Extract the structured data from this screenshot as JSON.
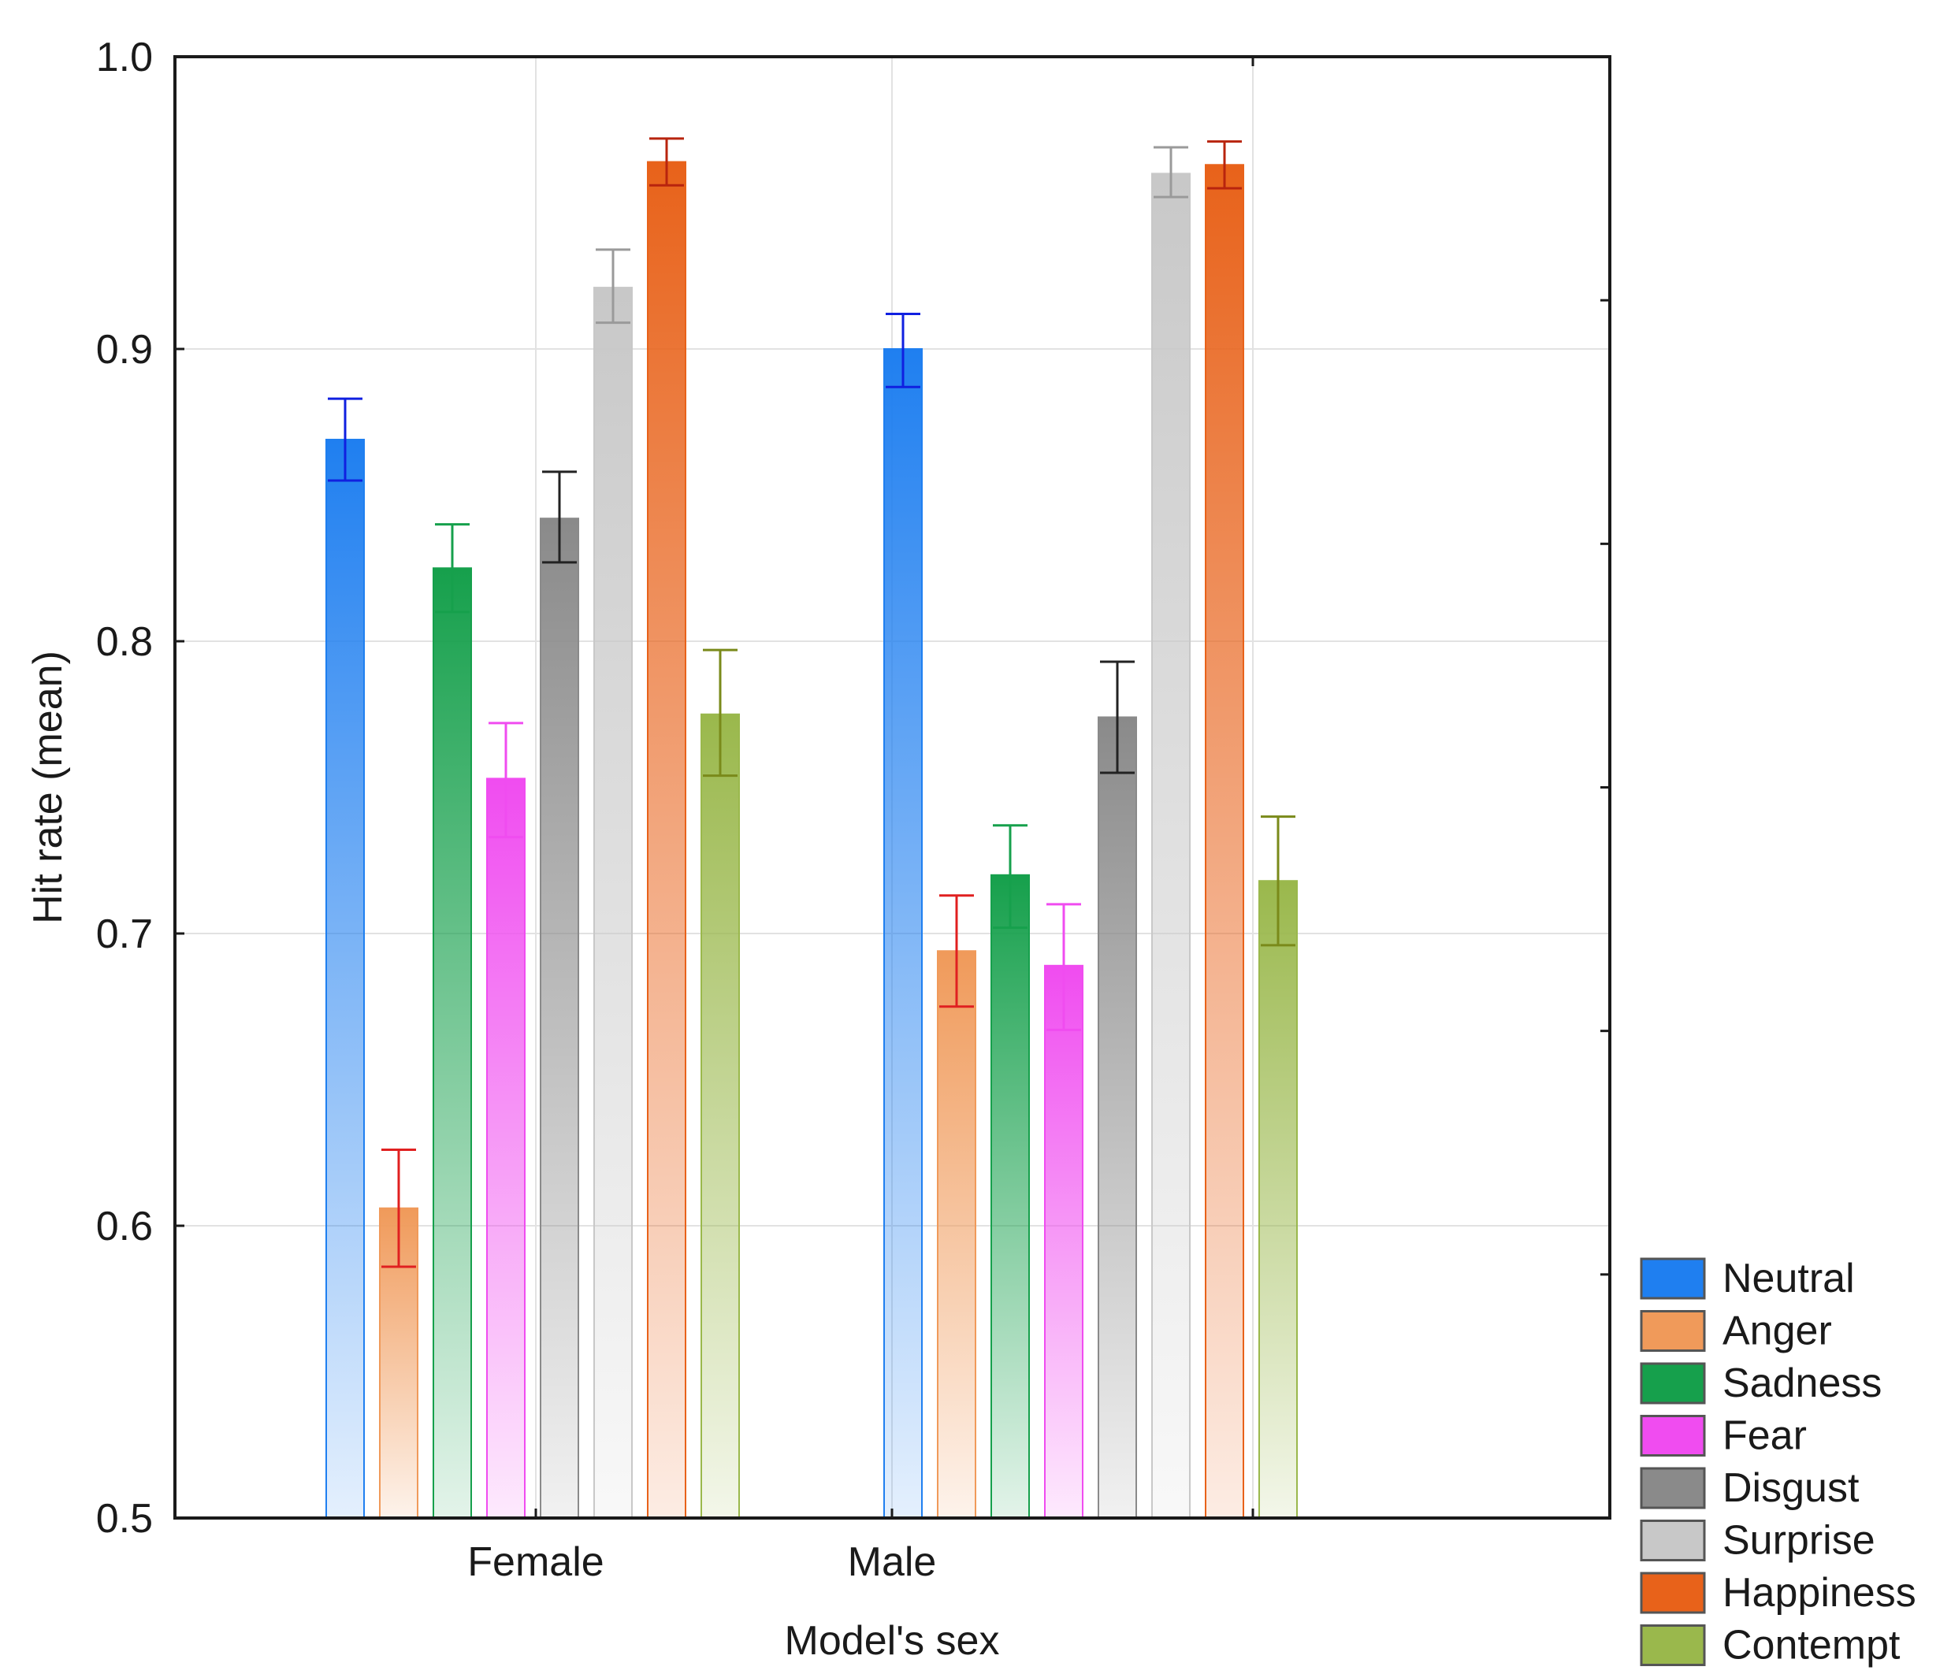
{
  "chart_data": {
    "type": "bar",
    "xlabel": "Model's sex",
    "ylabel": "Hit rate (mean)",
    "ylim": [
      0.5,
      1.0
    ],
    "yticks": [
      "0.5",
      "0.6",
      "0.7",
      "0.8",
      "0.9",
      "1.0"
    ],
    "categories": [
      "Female",
      "Male"
    ],
    "grid": true,
    "legend_position": "bottom-right, outside plot",
    "series": [
      {
        "name": "Neutral",
        "color": "#1f7ff0",
        "values": [
          0.869,
          0.9
        ],
        "err_low": [
          0.855,
          0.887
        ],
        "err_high": [
          0.883,
          0.912
        ]
      },
      {
        "name": "Anger",
        "color": "#f09a5a",
        "values": [
          0.606,
          0.694
        ],
        "err_low": [
          0.586,
          0.675
        ],
        "err_high": [
          0.626,
          0.713
        ]
      },
      {
        "name": "Sadness",
        "color": "#16a04c",
        "values": [
          0.825,
          0.72
        ],
        "err_low": [
          0.81,
          0.702
        ],
        "err_high": [
          0.84,
          0.737
        ]
      },
      {
        "name": "Fear",
        "color": "#f04cf0",
        "values": [
          0.753,
          0.689
        ],
        "err_low": [
          0.733,
          0.667
        ],
        "err_high": [
          0.772,
          0.71
        ]
      },
      {
        "name": "Disgust",
        "color": "#8a8a8a",
        "values": [
          0.842,
          0.774
        ],
        "err_low": [
          0.827,
          0.755
        ],
        "err_high": [
          0.858,
          0.793
        ]
      },
      {
        "name": "Surprise",
        "color": "#c8c8c8",
        "values": [
          0.921,
          0.96
        ],
        "err_low": [
          0.909,
          0.952
        ],
        "err_high": [
          0.934,
          0.969
        ]
      },
      {
        "name": "Happiness",
        "color": "#e8621a",
        "values": [
          0.964,
          0.963
        ],
        "err_low": [
          0.956,
          0.955
        ],
        "err_high": [
          0.972,
          0.971
        ]
      },
      {
        "name": "Contempt",
        "color": "#9ab84c",
        "values": [
          0.775,
          0.718
        ],
        "err_low": [
          0.754,
          0.696
        ],
        "err_high": [
          0.797,
          0.74
        ]
      }
    ]
  }
}
